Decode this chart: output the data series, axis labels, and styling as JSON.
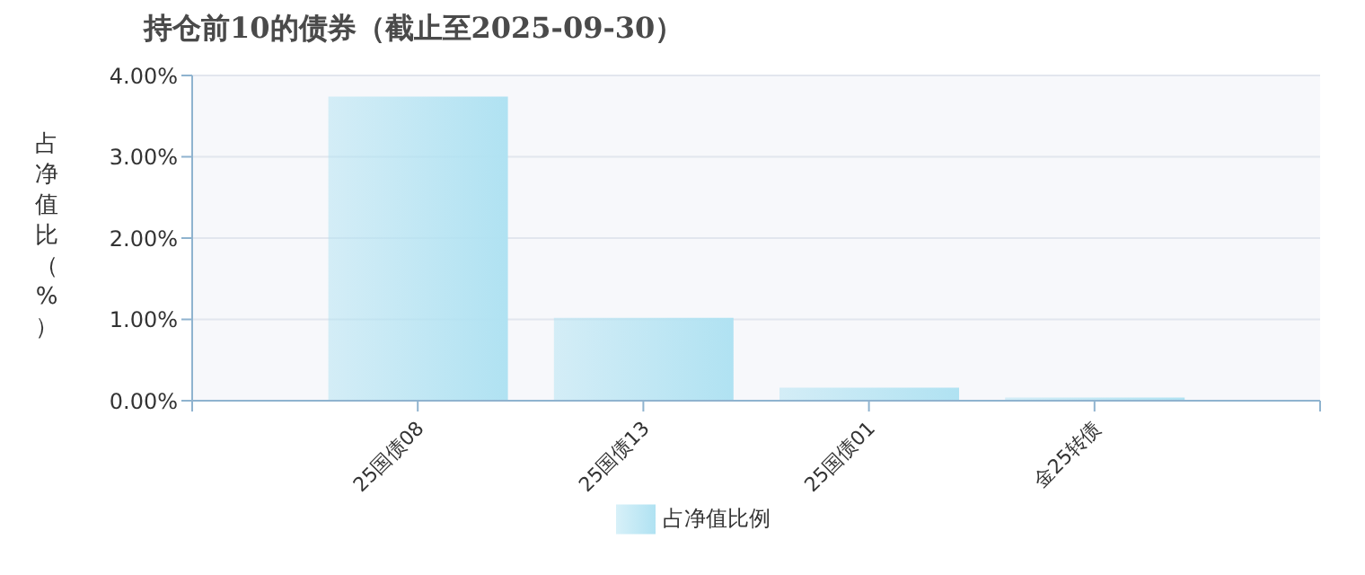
{
  "chart_data": {
    "type": "bar",
    "title": "持仓前10的债券（截止至2025-09-30）",
    "ylabel": "占净值比（%）",
    "categories": [
      "25国债08",
      "25国债13",
      "25国债01",
      "金25转债"
    ],
    "series": [
      {
        "name": "占净值比例",
        "color": "#b0e2f2",
        "values": [
          3.74,
          1.02,
          0.16,
          0.04
        ]
      }
    ],
    "ylim": [
      0,
      4
    ],
    "yticks": [
      {
        "value": 0,
        "label": "0.00%"
      },
      {
        "value": 1,
        "label": "1.00%"
      },
      {
        "value": 2,
        "label": "2.00%"
      },
      {
        "value": 3,
        "label": "3.00%"
      },
      {
        "value": 4,
        "label": "4.00%"
      }
    ],
    "grid": "y",
    "legend": "bottom"
  }
}
